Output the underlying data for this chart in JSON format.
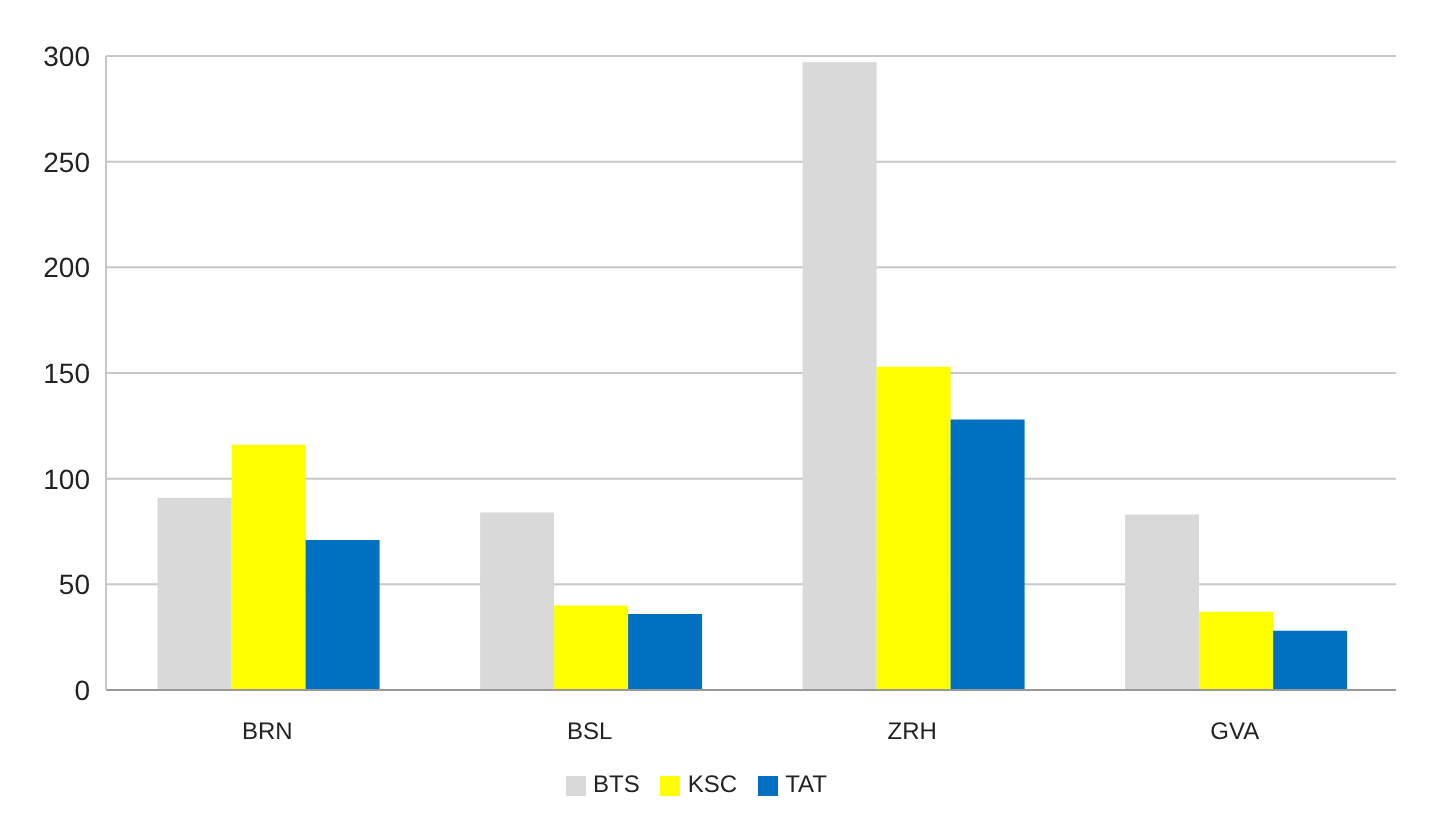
{
  "chart_data": {
    "type": "bar",
    "categories": [
      "BRN",
      "BSL",
      "ZRH",
      "GVA"
    ],
    "series": [
      {
        "name": "BTS",
        "color": "#d9d9d9",
        "values": [
          91,
          84,
          297,
          83
        ]
      },
      {
        "name": "KSC",
        "color": "#ffff00",
        "values": [
          116,
          40,
          153,
          37
        ]
      },
      {
        "name": "TAT",
        "color": "#0070c0",
        "values": [
          71,
          36,
          128,
          28
        ]
      }
    ],
    "ylim": [
      0,
      300
    ],
    "yticks": [
      0,
      50,
      100,
      150,
      200,
      250,
      300
    ],
    "grid": "y",
    "legend": "bottom"
  }
}
